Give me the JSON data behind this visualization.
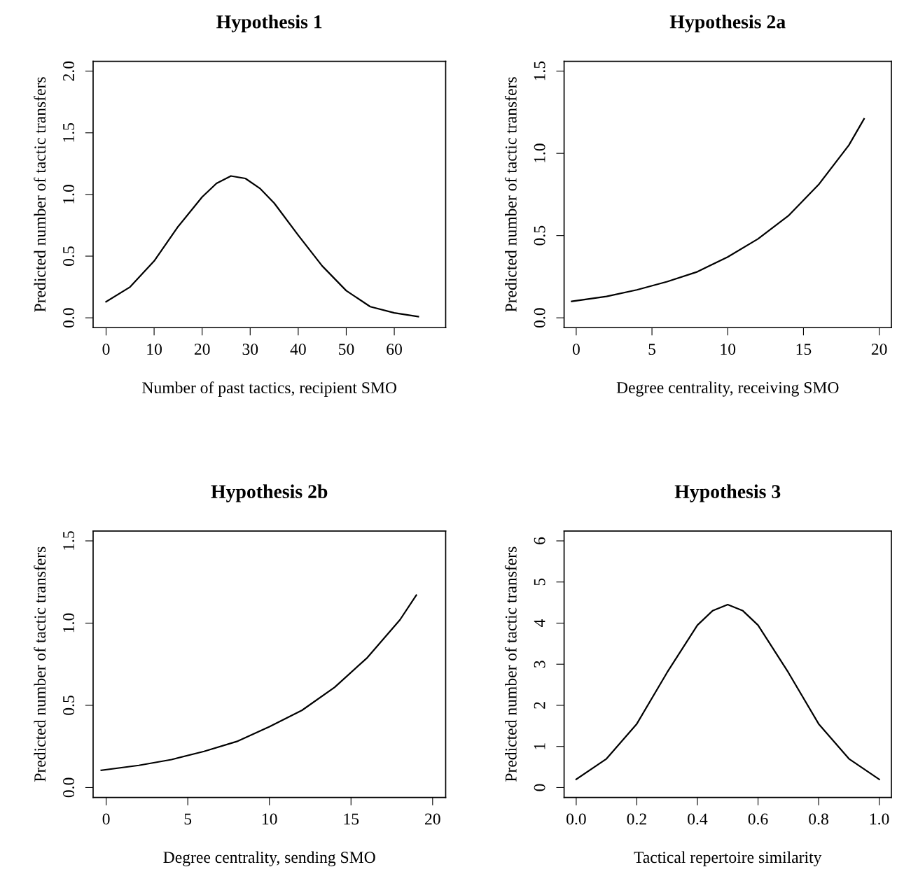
{
  "chart_data": [
    {
      "type": "line",
      "title": "Hypothesis 1",
      "xlabel": "Number of past tactics, recipient SMO",
      "ylabel": "Predicted number of tactic transfers",
      "x": [
        0,
        5,
        10,
        15,
        20,
        23,
        26,
        29,
        32,
        35,
        40,
        45,
        50,
        55,
        60,
        65
      ],
      "values": [
        0.13,
        0.25,
        0.46,
        0.74,
        0.98,
        1.09,
        1.15,
        1.13,
        1.05,
        0.93,
        0.67,
        0.42,
        0.22,
        0.09,
        0.04,
        0.01
      ],
      "color": "#000000",
      "xlim": [
        -2.7,
        70.7
      ],
      "ylim": [
        -0.08,
        2.08
      ],
      "xticks": [
        0,
        10,
        20,
        30,
        40,
        50,
        60
      ],
      "yticks": [
        {
          "value": 0,
          "label": "0.0"
        },
        0.5,
        {
          "value": 1,
          "label": "1.0"
        },
        1.5,
        {
          "value": 2,
          "label": "2.0"
        }
      ],
      "grid": false,
      "marker": "none",
      "line_style": "solid"
    },
    {
      "type": "line",
      "title": "Hypothesis 2a",
      "xlabel": "Degree centrality, receiving SMO",
      "ylabel": "Predicted number of tactic transfers",
      "x": [
        -0.3,
        2,
        4,
        6,
        8,
        10,
        12,
        14,
        16,
        18,
        19
      ],
      "values": [
        0.1,
        0.13,
        0.17,
        0.22,
        0.28,
        0.37,
        0.48,
        0.62,
        0.81,
        1.05,
        1.21
      ],
      "color": "#000000",
      "xlim": [
        -0.8,
        20.8
      ],
      "ylim": [
        -0.06,
        1.56
      ],
      "xticks": [
        0,
        5,
        10,
        15,
        20
      ],
      "yticks": [
        {
          "value": 0,
          "label": "0.0"
        },
        0.5,
        {
          "value": 1,
          "label": "1.0"
        },
        1.5
      ],
      "grid": false,
      "marker": "none",
      "line_style": "solid"
    },
    {
      "type": "line",
      "title": "Hypothesis 2b",
      "xlabel": "Degree centrality, sending SMO",
      "ylabel": "Predicted number of tactic transfers",
      "x": [
        -0.3,
        2,
        4,
        6,
        8,
        10,
        12,
        14,
        16,
        18,
        19
      ],
      "values": [
        0.105,
        0.135,
        0.17,
        0.22,
        0.28,
        0.37,
        0.47,
        0.61,
        0.79,
        1.02,
        1.17
      ],
      "color": "#000000",
      "xlim": [
        -0.8,
        20.8
      ],
      "ylim": [
        -0.06,
        1.56
      ],
      "xticks": [
        0,
        5,
        10,
        15,
        20
      ],
      "yticks": [
        {
          "value": 0,
          "label": "0.0"
        },
        0.5,
        {
          "value": 1,
          "label": "1.0"
        },
        1.5
      ],
      "grid": false,
      "marker": "none",
      "line_style": "solid"
    },
    {
      "type": "line",
      "title": "Hypothesis 3",
      "xlabel": "Tactical repertoire similarity",
      "ylabel": "Predicted number of tactic transfers",
      "x": [
        0,
        0.1,
        0.2,
        0.3,
        0.4,
        0.45,
        0.5,
        0.55,
        0.6,
        0.7,
        0.8,
        0.9,
        1.0
      ],
      "values": [
        0.2,
        0.7,
        1.55,
        2.8,
        3.95,
        4.3,
        4.45,
        4.3,
        3.95,
        2.8,
        1.55,
        0.7,
        0.2
      ],
      "color": "#000000",
      "xlim": [
        -0.04,
        1.04
      ],
      "ylim": [
        -0.24,
        6.24
      ],
      "xticks": [
        {
          "value": 0,
          "label": "0.0"
        },
        0.2,
        0.4,
        0.6,
        0.8,
        {
          "value": 1,
          "label": "1.0"
        }
      ],
      "yticks": [
        0,
        1,
        2,
        3,
        4,
        5,
        6
      ],
      "grid": false,
      "marker": "none",
      "line_style": "solid"
    }
  ]
}
